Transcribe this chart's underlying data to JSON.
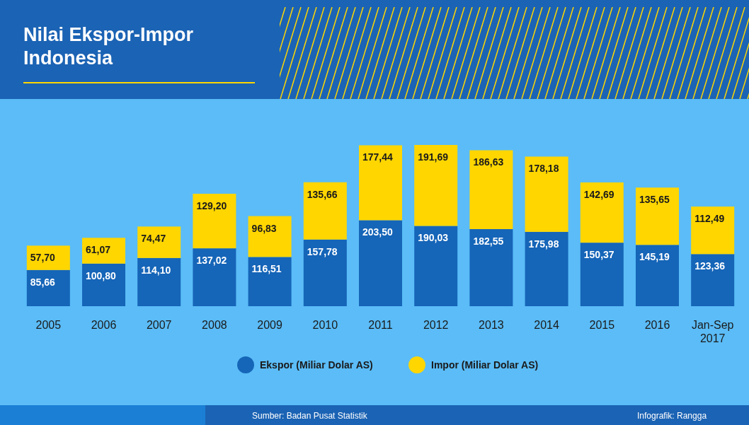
{
  "chart_data": {
    "type": "bar",
    "stacked": true,
    "title": "Nilai Ekspor-Impor Indonesia",
    "categories": [
      "2005",
      "2006",
      "2007",
      "2008",
      "2009",
      "2010",
      "2011",
      "2012",
      "2013",
      "2014",
      "2015",
      "2016",
      "Jan-Sep 2017"
    ],
    "series": [
      {
        "name": "Ekspor (Miliar Dolar AS)",
        "color": "#1565b8",
        "values": [
          85.66,
          100.8,
          114.1,
          137.02,
          116.51,
          157.78,
          203.5,
          190.03,
          182.55,
          175.98,
          150.37,
          145.19,
          123.36
        ],
        "value_labels": [
          "85,66",
          "100,80",
          "114,10",
          "137,02",
          "116,51",
          "157,78",
          "203,50",
          "190,03",
          "182,55",
          "175,98",
          "150,37",
          "145,19",
          "123,36"
        ]
      },
      {
        "name": "Impor (Miliar Dolar AS)",
        "color": "#ffd600",
        "values": [
          57.7,
          61.07,
          74.47,
          129.2,
          96.83,
          135.66,
          177.44,
          191.69,
          186.63,
          178.18,
          142.69,
          135.65,
          112.49
        ],
        "value_labels": [
          "57,70",
          "61,07",
          "74,47",
          "129,20",
          "96,83",
          "135,66",
          "177,44",
          "191,69",
          "186,63",
          "178,18",
          "142,69",
          "135,65",
          "112,49"
        ]
      }
    ],
    "legend": "bottom",
    "annotations": [
      "Sumber: Badan Pusat Statistik",
      "Infografik: Rangga"
    ]
  }
}
